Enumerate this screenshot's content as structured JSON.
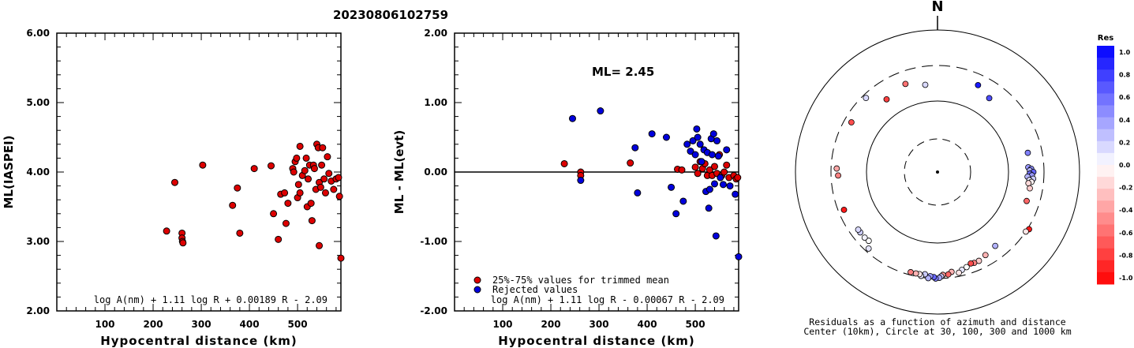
{
  "figure_title": "20230806102759",
  "chart_data": [
    {
      "type": "scatter",
      "title": "",
      "xlabel": "Hypocentral distance (km)",
      "ylabel": "ML(IASPEI)",
      "xlim": [
        0,
        590
      ],
      "ylim": [
        2.0,
        6.0
      ],
      "xticks": [
        100,
        200,
        300,
        400,
        500
      ],
      "xtick_labels": [
        "100",
        "200",
        "300",
        "400",
        "500"
      ],
      "yticks": [
        2.0,
        3.0,
        4.0,
        5.0,
        6.0
      ],
      "ytick_labels": [
        "2.00",
        "3.00",
        "4.00",
        "5.00",
        "6.00"
      ],
      "formula": "log A(nm) + 1.11 log R + 0.00189 R - 2.09",
      "series": [
        {
          "color": "#dd0000",
          "points": [
            [
              228,
              3.15
            ],
            [
              245,
              3.85
            ],
            [
              260,
              3.12
            ],
            [
              260,
              3.05
            ],
            [
              261,
              3.0
            ],
            [
              262,
              2.98
            ],
            [
              303,
              4.1
            ],
            [
              365,
              3.52
            ],
            [
              375,
              3.77
            ],
            [
              380,
              3.12
            ],
            [
              410,
              4.05
            ],
            [
              445,
              4.09
            ],
            [
              450,
              3.4
            ],
            [
              460,
              3.03
            ],
            [
              465,
              3.68
            ],
            [
              473,
              3.7
            ],
            [
              476,
              3.26
            ],
            [
              480,
              3.55
            ],
            [
              490,
              4.05
            ],
            [
              492,
              4.0
            ],
            [
              495,
              4.15
            ],
            [
              498,
              4.2
            ],
            [
              500,
              3.63
            ],
            [
              502,
              3.82
            ],
            [
              505,
              3.7
            ],
            [
              505,
              4.37
            ],
            [
              510,
              3.95
            ],
            [
              515,
              4.02
            ],
            [
              518,
              4.2
            ],
            [
              520,
              3.5
            ],
            [
              522,
              3.9
            ],
            [
              525,
              4.1
            ],
            [
              528,
              3.55
            ],
            [
              530,
              3.3
            ],
            [
              533,
              4.1
            ],
            [
              535,
              4.05
            ],
            [
              538,
              3.75
            ],
            [
              540,
              4.4
            ],
            [
              543,
              4.35
            ],
            [
              545,
              2.94
            ],
            [
              545,
              3.85
            ],
            [
              548,
              3.78
            ],
            [
              550,
              4.1
            ],
            [
              552,
              4.35
            ],
            [
              555,
              3.9
            ],
            [
              558,
              3.7
            ],
            [
              562,
              4.22
            ],
            [
              565,
              3.98
            ],
            [
              570,
              3.87
            ],
            [
              575,
              3.75
            ],
            [
              580,
              3.9
            ],
            [
              585,
              3.92
            ],
            [
              587,
              3.65
            ],
            [
              590,
              2.76
            ]
          ]
        }
      ]
    },
    {
      "type": "scatter",
      "title": "",
      "xlabel": "Hypocentral distance (km)",
      "ylabel": "ML - ML(evt)",
      "xlim": [
        0,
        590
      ],
      "ylim": [
        -2.0,
        2.0
      ],
      "xticks": [
        100,
        200,
        300,
        400,
        500
      ],
      "xtick_labels": [
        "100",
        "200",
        "300",
        "400",
        "500"
      ],
      "yticks": [
        -2.0,
        -1.0,
        0.0,
        1.0,
        2.0
      ],
      "ytick_labels": [
        "-2.00",
        "-1.00",
        "0.00",
        "1.00",
        "2.00"
      ],
      "annotation": "ML= 2.45",
      "formula": "log A(nm) + 1.11 log R - 0.00067 R - 2.09",
      "legend": [
        {
          "label": "25%-75% values for trimmed mean",
          "color": "#dd0000"
        },
        {
          "label": "Rejected values",
          "color": "#0000dd"
        }
      ],
      "series": [
        {
          "name": "25%-75% values for trimmed mean",
          "color": "#dd0000",
          "points": [
            [
              228,
              0.12
            ],
            [
              262,
              0.0
            ],
            [
              262,
              -0.05
            ],
            [
              365,
              0.13
            ],
            [
              463,
              0.04
            ],
            [
              472,
              0.03
            ],
            [
              500,
              0.07
            ],
            [
              505,
              -0.02
            ],
            [
              510,
              0.15
            ],
            [
              515,
              0.05
            ],
            [
              520,
              0.12
            ],
            [
              525,
              -0.05
            ],
            [
              530,
              0.03
            ],
            [
              535,
              -0.05
            ],
            [
              540,
              0.08
            ],
            [
              545,
              -0.02
            ],
            [
              550,
              0.25
            ],
            [
              555,
              -0.05
            ],
            [
              560,
              0.0
            ],
            [
              565,
              0.1
            ],
            [
              570,
              -0.08
            ],
            [
              580,
              -0.05
            ],
            [
              585,
              -0.1
            ],
            [
              588,
              -0.08
            ]
          ]
        },
        {
          "name": "Rejected values",
          "color": "#0000dd",
          "points": [
            [
              245,
              0.77
            ],
            [
              262,
              -0.12
            ],
            [
              303,
              0.88
            ],
            [
              375,
              0.35
            ],
            [
              380,
              -0.3
            ],
            [
              410,
              0.55
            ],
            [
              440,
              0.5
            ],
            [
              450,
              -0.22
            ],
            [
              460,
              -0.6
            ],
            [
              475,
              -0.42
            ],
            [
              483,
              0.4
            ],
            [
              490,
              0.3
            ],
            [
              495,
              0.45
            ],
            [
              500,
              0.25
            ],
            [
              503,
              0.62
            ],
            [
              505,
              0.5
            ],
            [
              510,
              0.4
            ],
            [
              513,
              0.15
            ],
            [
              518,
              0.32
            ],
            [
              522,
              -0.28
            ],
            [
              525,
              0.28
            ],
            [
              528,
              -0.52
            ],
            [
              530,
              -0.25
            ],
            [
              533,
              0.48
            ],
            [
              535,
              0.25
            ],
            [
              538,
              0.55
            ],
            [
              540,
              -0.17
            ],
            [
              543,
              -0.92
            ],
            [
              545,
              0.45
            ],
            [
              548,
              0.23
            ],
            [
              552,
              -0.08
            ],
            [
              558,
              -0.18
            ],
            [
              565,
              0.32
            ],
            [
              572,
              -0.2
            ],
            [
              583,
              -0.32
            ],
            [
              590,
              -1.22
            ]
          ]
        }
      ]
    },
    {
      "type": "polar-scatter",
      "title": "N",
      "caption_line1": "Residuals as a function of azimuth and distance",
      "caption_line2": "Center (10km), Circle at 30, 100, 300 and 1000 km",
      "colorbar": {
        "title": "Res",
        "range": [
          -1.0,
          1.0
        ],
        "tick_labels": [
          "1.0",
          "0.8",
          "0.6",
          "0.4",
          "0.2",
          "0.0",
          "-0.2",
          "-0.4",
          "-0.6",
          "-0.8",
          "-1.0"
        ]
      },
      "points": [
        [
          -35,
          1.25,
          -0.75
        ],
        [
          -20,
          1.32,
          -0.55
        ],
        [
          -8,
          1.24,
          0.15
        ],
        [
          25,
          1.35,
          0.9
        ],
        [
          35,
          1.27,
          0.7
        ],
        [
          78,
          1.3,
          0.5
        ],
        [
          87,
          1.28,
          0.4
        ],
        [
          88,
          1.32,
          0.45
        ],
        [
          89,
          1.3,
          0.3
        ],
        [
          90,
          1.35,
          0.6
        ],
        [
          91,
          1.3,
          0.55
        ],
        [
          92,
          1.33,
          0.4
        ],
        [
          93,
          1.27,
          0.3
        ],
        [
          94,
          1.35,
          0.2
        ],
        [
          95,
          1.3,
          0.1
        ],
        [
          96,
          1.33,
          -0.05
        ],
        [
          97,
          1.29,
          -0.15
        ],
        [
          100,
          1.32,
          -0.2
        ],
        [
          108,
          1.32,
          -0.6
        ],
        [
          122,
          1.52,
          -0.9
        ],
        [
          124,
          1.5,
          -0.1
        ],
        [
          142,
          1.32,
          0.3
        ],
        [
          150,
          1.35,
          -0.3
        ],
        [
          155,
          1.38,
          -0.2
        ],
        [
          158,
          1.38,
          -0.5
        ],
        [
          160,
          1.37,
          -0.7
        ],
        [
          163,
          1.4,
          0.0
        ],
        [
          166,
          1.42,
          0.1
        ],
        [
          168,
          1.45,
          -0.1
        ],
        [
          172,
          1.42,
          -0.3
        ],
        [
          174,
          1.45,
          -0.6
        ],
        [
          177,
          1.45,
          -0.4
        ],
        [
          178,
          1.47,
          0.2
        ],
        [
          179,
          1.49,
          0.35
        ],
        [
          181,
          1.5,
          0.5
        ],
        [
          182,
          1.48,
          0.6
        ],
        [
          184,
          1.47,
          0.4
        ],
        [
          185,
          1.5,
          0.3
        ],
        [
          187,
          1.45,
          0.2
        ],
        [
          189,
          1.48,
          0.1
        ],
        [
          190,
          1.46,
          -0.1
        ],
        [
          192,
          1.46,
          -0.3
        ],
        [
          195,
          1.46,
          -0.5
        ],
        [
          222,
          1.45,
          0.1
        ],
        [
          225,
          1.37,
          0.0
        ],
        [
          228,
          1.38,
          0.05
        ],
        [
          232,
          1.38,
          0.2
        ],
        [
          234,
          1.38,
          0.15
        ],
        [
          248,
          1.42,
          -0.9
        ],
        [
          268,
          1.4,
          -0.5
        ],
        [
          272,
          1.42,
          -0.35
        ],
        [
          300,
          1.4,
          -0.7
        ],
        [
          316,
          1.45,
          0.15
        ]
      ]
    }
  ]
}
